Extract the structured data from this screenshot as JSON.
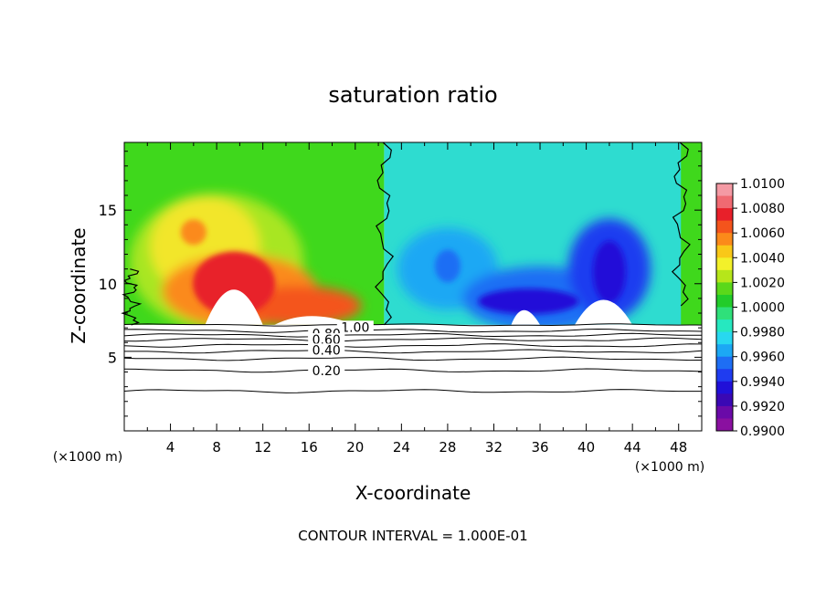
{
  "chart_data": {
    "type": "heatmap",
    "title": "saturation ratio",
    "xlabel": "X-coordinate",
    "ylabel": "Z-coordinate",
    "x_unit_left": "(×1000 m)",
    "x_unit_right": "(×1000 m)",
    "footer": "CONTOUR INTERVAL = 1.000E-01",
    "xlim": [
      0,
      50
    ],
    "ylim": [
      0,
      19.6
    ],
    "xticks": [
      4,
      8,
      12,
      16,
      20,
      24,
      28,
      32,
      36,
      40,
      44,
      48
    ],
    "yticks": [
      5,
      10,
      15
    ],
    "colorbar": {
      "labels": [
        "1.0100",
        "1.0080",
        "1.0060",
        "1.0040",
        "1.0020",
        "1.0000",
        "0.9980",
        "0.9960",
        "0.9940",
        "0.9920",
        "0.9900"
      ],
      "colors": [
        "#f49aa4",
        "#f06a72",
        "#e8202a",
        "#f4541c",
        "#fb8a1a",
        "#f9c818",
        "#f3f12a",
        "#b6e61a",
        "#5ad81a",
        "#22cc2a",
        "#2fe07a",
        "#26e8c0",
        "#28d8f0",
        "#1ca8f4",
        "#1e6ef4",
        "#1f3cf0",
        "#2010d8",
        "#3a08b4",
        "#6a0aa8",
        "#8a10a0"
      ]
    },
    "contour_labels": [
      "1.00",
      "0.80",
      "0.60",
      "0.40",
      "0.20"
    ],
    "contour_levels": [
      0.2,
      0.4,
      0.6,
      0.8,
      1.0
    ],
    "boundary_z": 7.2,
    "unit_contour_x": [
      22.5,
      48.2
    ],
    "features": [
      {
        "kind": "supersaturated",
        "x": 9.5,
        "z": 10.5,
        "peak": 1.009
      },
      {
        "kind": "supersaturated",
        "x": 6,
        "z": 13.5,
        "peak": 1.004
      },
      {
        "kind": "subsaturated",
        "x": 28,
        "z": 11.2,
        "peak": 0.996
      },
      {
        "kind": "subsaturated",
        "x": 35,
        "z": 9.2,
        "peak": 0.991
      },
      {
        "kind": "subsaturated",
        "x": 42,
        "z": 10.5,
        "peak": 0.991
      }
    ]
  }
}
